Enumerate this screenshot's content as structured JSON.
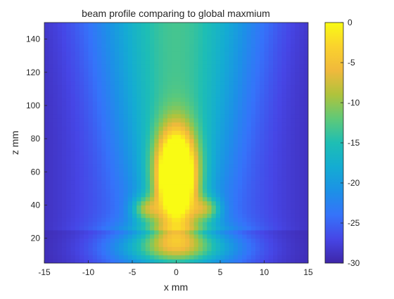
{
  "figure": {
    "background": "#ffffff"
  },
  "chart_data": {
    "type": "heatmap",
    "title": "beam profile comparing to global maxmium",
    "xlabel": "x mm",
    "ylabel": "z mm",
    "xlim": [
      -15,
      15
    ],
    "ylim": [
      5,
      150
    ],
    "xticks": [
      -15,
      -10,
      -5,
      0,
      5,
      10,
      15
    ],
    "yticks": [
      20,
      40,
      60,
      80,
      100,
      120,
      140
    ],
    "colormap": "parula",
    "colorbar": {
      "limits": [
        -30,
        0
      ],
      "ticks": [
        0,
        -5,
        -10,
        -15,
        -20,
        -25,
        -30
      ]
    },
    "grid": false,
    "z_description_db": {
      "peak_value": 0,
      "peak_location_x": 0,
      "peak_location_z": 55,
      "floor_value": -30
    }
  }
}
